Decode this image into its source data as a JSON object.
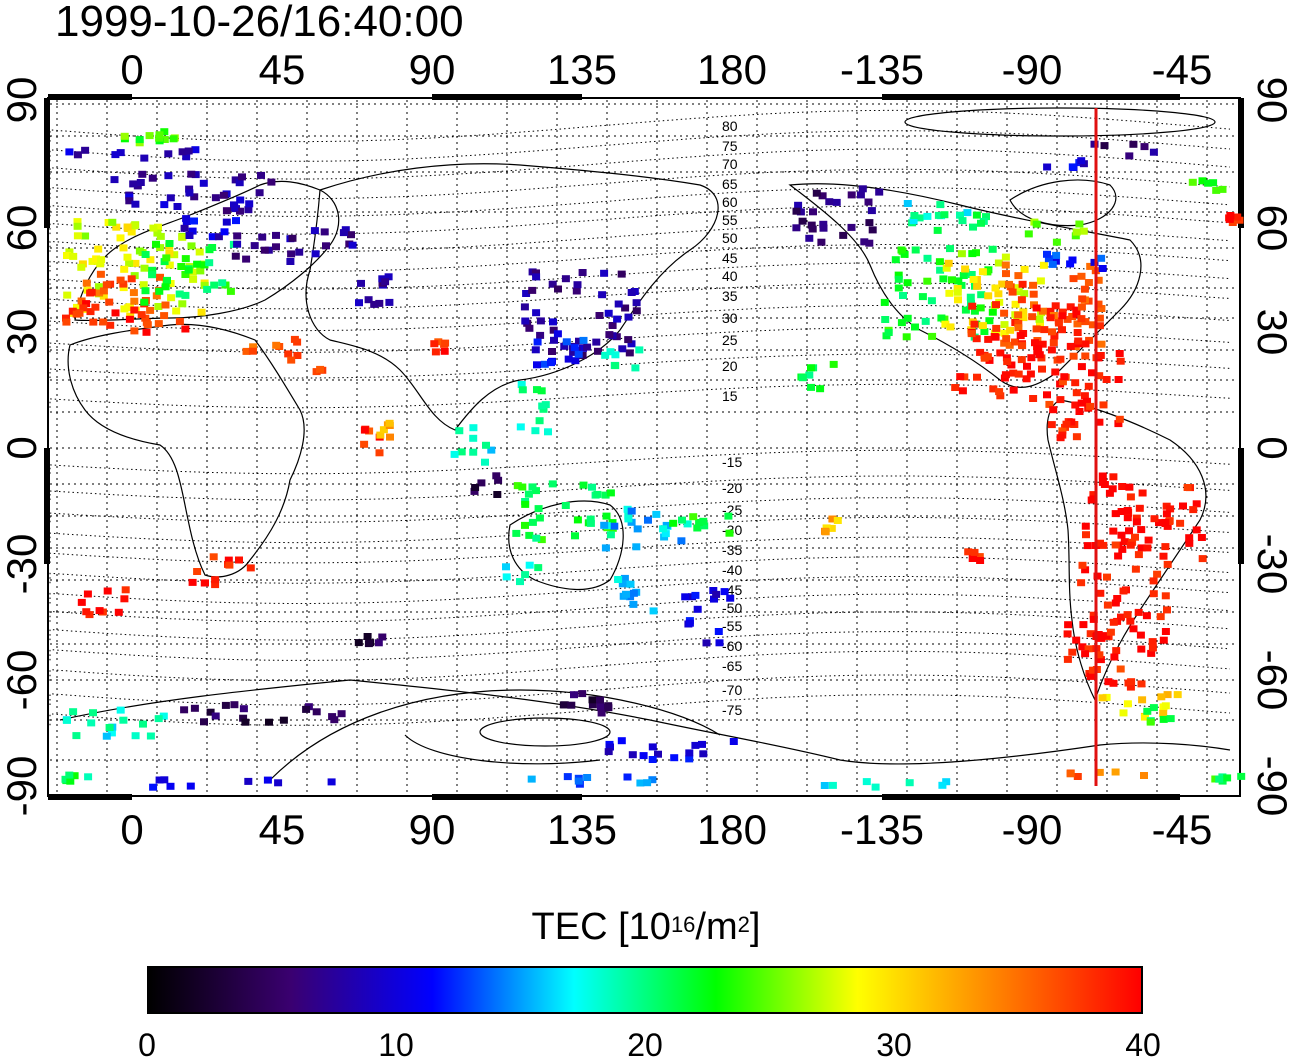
{
  "title": "1999-10-26/16:40:00",
  "map": {
    "lon_ticks": [
      "0",
      "45",
      "90",
      "135",
      "180",
      "-135",
      "-90",
      "-45"
    ],
    "lat_ticks": [
      "90",
      "60",
      "30",
      "0",
      "-30",
      "-60",
      "-90"
    ],
    "contour_labels": [
      "80",
      "75",
      "70",
      "65",
      "60",
      "55",
      "50",
      "45",
      "40",
      "35",
      "30",
      "25",
      "20",
      "15",
      "-15",
      "-20",
      "-25",
      "-30",
      "-35",
      "-40",
      "-45",
      "-50",
      "-55",
      "-60",
      "-65",
      "-70",
      "-75"
    ],
    "marker_color": "#e01010"
  },
  "colorbar": {
    "title_main": "TEC  [10",
    "title_exp": "16",
    "title_unit": "/m",
    "title_exp2": "2",
    "title_end": "]",
    "ticks": [
      "0",
      "10",
      "20",
      "30",
      "40"
    ],
    "range": [
      0,
      40
    ],
    "stops": [
      "#000000",
      "#3a0070",
      "#0000ff",
      "#00ffff",
      "#00ff00",
      "#ffff00",
      "#ff8000",
      "#ff0000"
    ]
  }
}
